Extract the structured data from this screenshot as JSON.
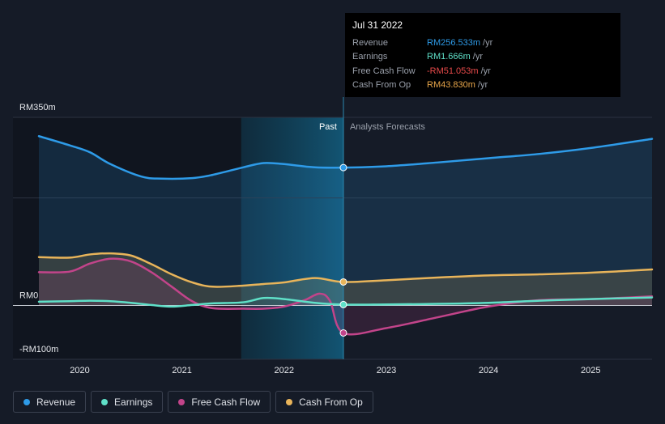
{
  "tooltip": {
    "date": "Jul 31 2022",
    "rows": [
      {
        "label": "Revenue",
        "value": "RM256.533m",
        "unit": "/yr",
        "color": "#2e9be8"
      },
      {
        "label": "Earnings",
        "value": "RM1.666m",
        "unit": "/yr",
        "color": "#5fe0c8"
      },
      {
        "label": "Free Cash Flow",
        "value": "-RM51.053m",
        "unit": "/yr",
        "color": "#e84a4a"
      },
      {
        "label": "Cash From Op",
        "value": "RM43.830m",
        "unit": "/yr",
        "color": "#e8a64a"
      }
    ]
  },
  "legend": [
    {
      "label": "Revenue",
      "color": "#2e9be8"
    },
    {
      "label": "Earnings",
      "color": "#5fe0c8"
    },
    {
      "label": "Free Cash Flow",
      "color": "#c2448a"
    },
    {
      "label": "Cash From Op",
      "color": "#e8b45a"
    }
  ],
  "chart_data": {
    "type": "line",
    "title": "",
    "xlabel": "",
    "ylabel": "",
    "y_tick_labels": [
      "RM350m",
      "RM0",
      "-RM100m"
    ],
    "ylim": [
      -100,
      350
    ],
    "xlim": [
      2019.6,
      2025.6
    ],
    "x_ticks": [
      2020,
      2021,
      2022,
      2023,
      2024,
      2025
    ],
    "x_tick_labels": [
      "2020",
      "2021",
      "2022",
      "2023",
      "2024",
      "2025"
    ],
    "past_label": "Past",
    "forecast_label": "Analysts Forecasts",
    "divider_x": 2022.58,
    "highlight_start_x": 2021.58,
    "series": [
      {
        "name": "Revenue",
        "color": "#2e9be8",
        "fill": true,
        "x": [
          2019.6,
          2019.9,
          2020.1,
          2020.3,
          2020.6,
          2020.8,
          2021.1,
          2021.3,
          2021.6,
          2021.8,
          2022.0,
          2022.3,
          2022.58,
          2023.0,
          2023.5,
          2024.0,
          2024.5,
          2025.0,
          2025.6
        ],
        "values": [
          315,
          298,
          285,
          263,
          240,
          236,
          237,
          243,
          257,
          265,
          263,
          257,
          256.5,
          259,
          266,
          274,
          282,
          293,
          310
        ]
      },
      {
        "name": "Cash From Op",
        "color": "#e8b45a",
        "fill": true,
        "x": [
          2019.6,
          2019.9,
          2020.1,
          2020.3,
          2020.5,
          2020.7,
          2020.9,
          2021.1,
          2021.3,
          2021.6,
          2021.8,
          2022.0,
          2022.3,
          2022.58,
          2023.0,
          2023.5,
          2024.0,
          2024.5,
          2025.0,
          2025.6
        ],
        "values": [
          90,
          89,
          95,
          97,
          93,
          77,
          58,
          43,
          35,
          37,
          40,
          43,
          51,
          43.8,
          47,
          52,
          56,
          58,
          61,
          67
        ]
      },
      {
        "name": "Free Cash Flow",
        "color": "#c2448a",
        "fill": true,
        "x": [
          2019.6,
          2019.9,
          2020.1,
          2020.3,
          2020.5,
          2020.7,
          2020.9,
          2021.1,
          2021.3,
          2021.6,
          2021.8,
          2022.0,
          2022.2,
          2022.35,
          2022.45,
          2022.58,
          2023.0,
          2023.5,
          2024.0,
          2024.5,
          2025.0,
          2025.6
        ],
        "values": [
          62,
          63,
          78,
          87,
          82,
          62,
          35,
          8,
          -5,
          -6,
          -6,
          -2,
          10,
          22,
          8,
          -51,
          -42,
          -22,
          -2,
          10,
          12,
          17
        ]
      },
      {
        "name": "Earnings",
        "color": "#5fe0c8",
        "fill": false,
        "x": [
          2019.6,
          2019.9,
          2020.1,
          2020.3,
          2020.5,
          2020.7,
          2020.9,
          2021.1,
          2021.3,
          2021.6,
          2021.8,
          2022.0,
          2022.3,
          2022.58,
          2023.0,
          2023.5,
          2024.0,
          2024.5,
          2025.0,
          2025.6
        ],
        "values": [
          7,
          8,
          9,
          8,
          5,
          1,
          -2,
          1,
          4,
          6,
          14,
          12,
          5,
          1.7,
          2,
          3,
          5,
          9,
          12,
          15
        ]
      }
    ]
  }
}
